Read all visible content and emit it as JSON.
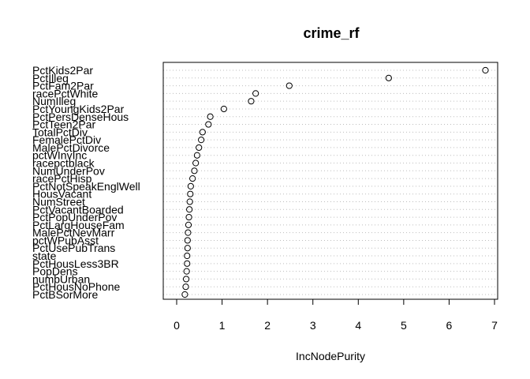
{
  "chart_data": {
    "type": "scatter",
    "title": "crime_rf",
    "xlabel": "IncNodePurity",
    "ylabel": "",
    "xlim": [
      0,
      7
    ],
    "xticks": [
      0,
      1,
      2,
      3,
      4,
      5,
      6,
      7
    ],
    "grid": "horizontal-dotted",
    "series": [
      {
        "points": [
          {
            "label": "PctKids2Par",
            "value": 6.8
          },
          {
            "label": "PctIlleg",
            "value": 4.67
          },
          {
            "label": "PctFam2Par",
            "value": 2.48
          },
          {
            "label": "racePctWhite",
            "value": 1.74
          },
          {
            "label": "NumIlleg",
            "value": 1.64
          },
          {
            "label": "PctYoungKids2Par",
            "value": 1.04
          },
          {
            "label": "PctPersDenseHous",
            "value": 0.74
          },
          {
            "label": "PctTeen2Par",
            "value": 0.7
          },
          {
            "label": "TotalPctDiv",
            "value": 0.57
          },
          {
            "label": "FemalePctDiv",
            "value": 0.54
          },
          {
            "label": "MalePctDivorce",
            "value": 0.49
          },
          {
            "label": "pctWInvInc",
            "value": 0.45
          },
          {
            "label": "racepctblack",
            "value": 0.42
          },
          {
            "label": "NumUnderPov",
            "value": 0.39
          },
          {
            "label": "racePctHisp",
            "value": 0.35
          },
          {
            "label": "PctNotSpeakEnglWell",
            "value": 0.31
          },
          {
            "label": "HousVacant",
            "value": 0.3
          },
          {
            "label": "NumStreet",
            "value": 0.29
          },
          {
            "label": "PctVacantBoarded",
            "value": 0.28
          },
          {
            "label": "PctPopUnderPov",
            "value": 0.27
          },
          {
            "label": "PctLargHouseFam",
            "value": 0.26
          },
          {
            "label": "MalePctNevMarr",
            "value": 0.25
          },
          {
            "label": "pctWPubAsst",
            "value": 0.24
          },
          {
            "label": "PctUsePubTrans",
            "value": 0.24
          },
          {
            "label": "state",
            "value": 0.23
          },
          {
            "label": "PctHousLess3BR",
            "value": 0.23
          },
          {
            "label": "PopDens",
            "value": 0.22
          },
          {
            "label": "numbUrban",
            "value": 0.21
          },
          {
            "label": "PctHousNoPhone",
            "value": 0.2
          },
          {
            "label": "PctBSorMore",
            "value": 0.18
          }
        ]
      }
    ]
  }
}
